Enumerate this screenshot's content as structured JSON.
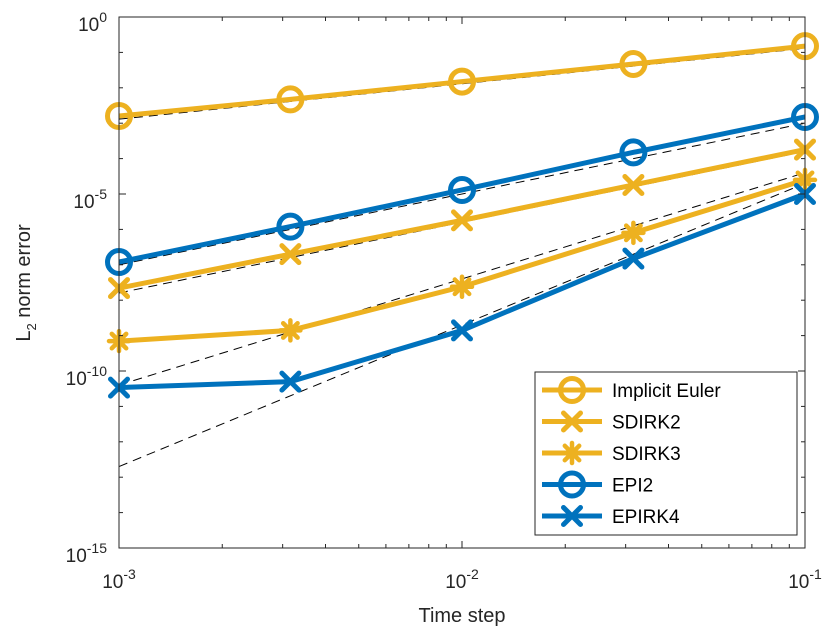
{
  "chart_data": {
    "type": "line",
    "xscale": "log",
    "yscale": "log",
    "xlabel": "Time step",
    "ylabel": "L",
    "ylabel_subscript": "2",
    "ylabel_suffix": " norm error",
    "xlim": [
      0.001,
      0.1
    ],
    "ylim": [
      1e-15,
      1
    ],
    "grid": false,
    "legend_position": "bottom-right",
    "x_ticks": [
      {
        "value": 0.001,
        "base": "10",
        "exp": "-3"
      },
      {
        "value": 0.01,
        "base": "10",
        "exp": "-2"
      },
      {
        "value": 0.1,
        "base": "10",
        "exp": "-1"
      }
    ],
    "y_ticks": [
      {
        "value": 1,
        "base": "10",
        "exp": "0"
      },
      {
        "value": 1e-05,
        "base": "10",
        "exp": "-5"
      },
      {
        "value": 1e-10,
        "base": "10",
        "exp": "-10"
      },
      {
        "value": 1e-15,
        "base": "10",
        "exp": "-15"
      }
    ],
    "x": [
      0.001,
      0.00316,
      0.01,
      0.0316,
      0.1
    ],
    "series": [
      {
        "name": "Implicit Euler",
        "color": "#EDB120",
        "marker": "circle",
        "values": [
          0.0016,
          0.0047,
          0.015,
          0.047,
          0.15
        ]
      },
      {
        "name": "SDIRK2",
        "color": "#EDB120",
        "marker": "x",
        "values": [
          2.2e-08,
          2e-07,
          1.8e-06,
          1.8e-05,
          0.00018
        ]
      },
      {
        "name": "SDIRK3",
        "color": "#EDB120",
        "marker": "asterisk",
        "values": [
          7e-10,
          1.4e-09,
          2.4e-08,
          8e-07,
          2.5e-05
        ]
      },
      {
        "name": "EPI2",
        "color": "#0072BD",
        "marker": "circle",
        "values": [
          1.2e-07,
          1.2e-06,
          1.3e-05,
          0.00015,
          0.0015
        ]
      },
      {
        "name": "EPIRK4",
        "color": "#0072BD",
        "marker": "x",
        "values": [
          3.4e-11,
          5e-11,
          1.4e-09,
          1.5e-07,
          1e-05
        ]
      }
    ],
    "reference_lines": [
      {
        "order": 1,
        "x": [
          0.001,
          0.1
        ],
        "y": [
          0.0013,
          0.13
        ]
      },
      {
        "order": 2,
        "x": [
          0.001,
          0.1
        ],
        "y": [
          1e-07,
          0.001
        ]
      },
      {
        "order": 2,
        "x": [
          0.001,
          0.1
        ],
        "y": [
          1.6e-08,
          0.00016
        ]
      },
      {
        "order": 3,
        "x": [
          0.001,
          0.1
        ],
        "y": [
          4e-11,
          4e-05
        ]
      },
      {
        "order": 4,
        "x": [
          0.001,
          0.1
        ],
        "y": [
          2e-13,
          2e-05
        ]
      }
    ]
  }
}
